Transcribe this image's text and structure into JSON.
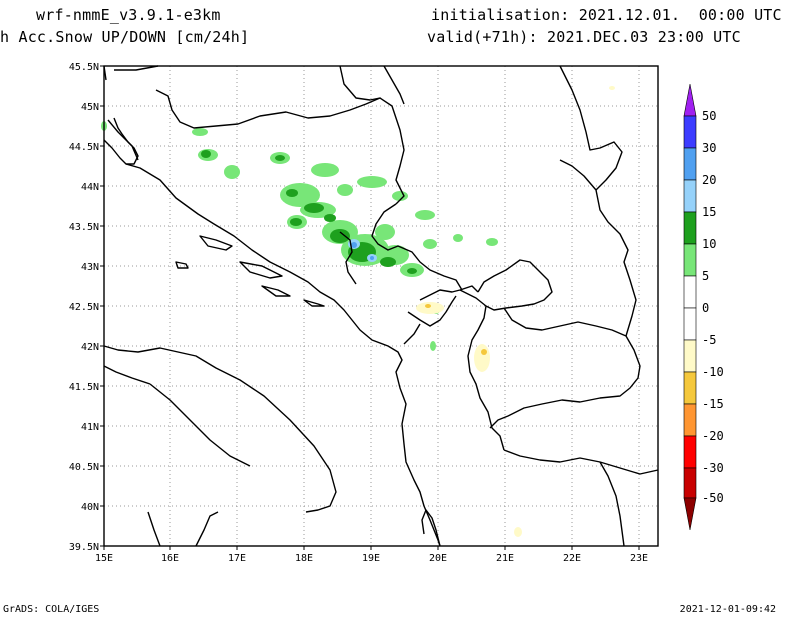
{
  "header": {
    "model": "wrf-nmmE_v3.9.1-e3km",
    "field": "h Acc.Snow UP/DOWN [cm/24h]",
    "initialisation": "initialisation: 2021.12.01.  00:00 UTC",
    "valid": "valid(+71h): 2021.DEC.03 23:00 UTC"
  },
  "footer": {
    "credit": "GrADS: COLA/IGES",
    "timestamp": "2021-12-01-09:42"
  },
  "map": {
    "lon_ticks": [
      "15E",
      "16E",
      "17E",
      "18E",
      "19E",
      "20E",
      "21E",
      "22E",
      "23E"
    ],
    "lat_ticks": [
      "45.5N",
      "45N",
      "44.5N",
      "44N",
      "43.5N",
      "43N",
      "42.5N",
      "42N",
      "41.5N",
      "41N",
      "40.5N",
      "40N",
      "39.5N"
    ]
  },
  "colorbar": {
    "labels": [
      "50",
      "30",
      "20",
      "15",
      "10",
      "5",
      "0",
      "-5",
      "-10",
      "-15",
      "-20",
      "-30",
      "-50"
    ],
    "colors": {
      "top_arrow": "#a020f0",
      "b30_50": "#3c3cff",
      "b20_30": "#50a0f0",
      "b15_20": "#96d2fa",
      "b10_15": "#1ea01e",
      "b5_10": "#78e678",
      "b0_5": "#ffffff",
      "bm5_0": "#ffffff",
      "bm10_m5": "#fffac8",
      "bm15_m10": "#f5c83c",
      "bm20_m15": "#ff9632",
      "bm30_m20": "#ff0000",
      "bm50_m30": "#c80000",
      "bottom_arrow": "#8c0000"
    }
  }
}
